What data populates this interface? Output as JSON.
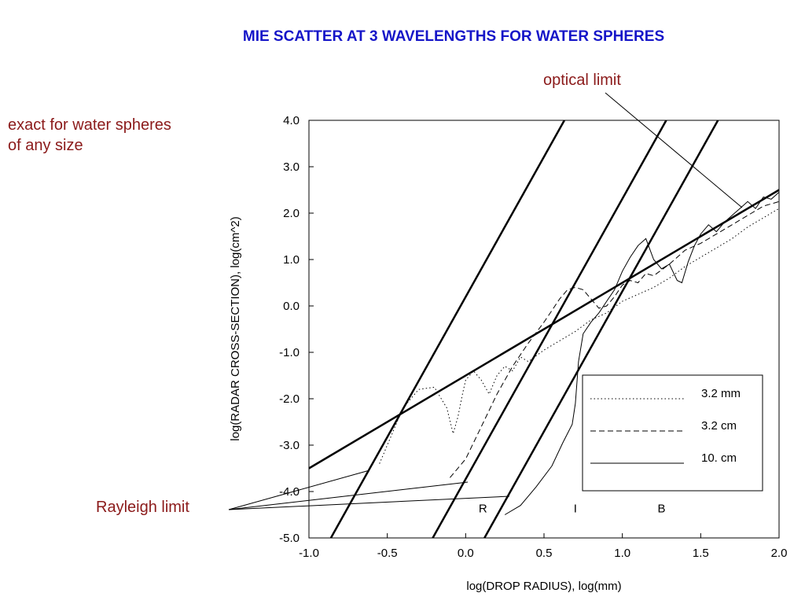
{
  "title": "MIE SCATTER AT 3 WAVELENGTHS FOR WATER SPHERES",
  "annotations": {
    "exact": [
      "exact for water spheres",
      "of any size"
    ],
    "optical": "optical limit",
    "rayleigh": "Rayleigh limit"
  },
  "colors": {
    "title": "#1515c8",
    "annotation": "#8b1a1a",
    "line": "#000000"
  },
  "chart_data": {
    "type": "line",
    "title": "MIE SCATTER AT 3 WAVELENGTHS FOR WATER SPHERES",
    "xlabel": "log(DROP RADIUS), log(mm)",
    "ylabel": "log(RADAR CROSS-SECTION), log(cm^2)",
    "xlim": [
      -1.0,
      2.0
    ],
    "ylim": [
      -5.0,
      4.0
    ],
    "xticks": [
      "-1.0",
      "-0.5",
      "0.0",
      "0.5",
      "1.0",
      "1.5",
      "2.0"
    ],
    "yticks": [
      "4.0",
      "3.0",
      "2.0",
      "1.0",
      "0.0",
      "-1.0",
      "-2.0",
      "-3.0",
      "-4.0",
      "-5.0"
    ],
    "regions": [
      "R",
      "I",
      "B"
    ],
    "region_x": [
      0.11,
      0.7,
      1.25
    ],
    "region_y": -4.45,
    "grid": false,
    "legend_position": "bottom-right",
    "limits": {
      "optical": {
        "x": [
          -1.0,
          2.0
        ],
        "y": [
          -3.5,
          2.5
        ]
      },
      "rayleigh": [
        {
          "x": [
            -0.86,
            0.63
          ],
          "y": [
            -5.0,
            4.0
          ]
        },
        {
          "x": [
            -0.21,
            1.28
          ],
          "y": [
            -5.0,
            4.0
          ]
        },
        {
          "x": [
            0.12,
            1.61
          ],
          "y": [
            -5.0,
            4.0
          ]
        }
      ]
    },
    "series": [
      {
        "name": "3.2 mm",
        "style": "dotted",
        "x": [
          -0.55,
          -0.45,
          -0.4,
          -0.3,
          -0.2,
          -0.12,
          -0.08,
          -0.05,
          -0.02,
          0.0,
          0.05,
          0.1,
          0.15,
          0.2,
          0.25,
          0.3,
          0.35,
          0.4,
          0.5,
          0.6,
          0.7,
          0.8,
          0.9,
          1.0,
          1.1,
          1.2,
          1.3,
          1.4,
          1.5,
          1.6,
          1.7,
          1.8,
          1.9,
          2.0
        ],
        "y": [
          -3.4,
          -2.6,
          -2.2,
          -1.8,
          -1.75,
          -2.2,
          -2.75,
          -2.4,
          -1.9,
          -1.6,
          -1.4,
          -1.6,
          -1.9,
          -1.5,
          -1.3,
          -1.4,
          -1.1,
          -1.2,
          -0.95,
          -0.75,
          -0.55,
          -0.3,
          -0.15,
          0.1,
          0.25,
          0.4,
          0.6,
          0.85,
          1.05,
          1.25,
          1.45,
          1.7,
          1.9,
          2.1
        ]
      },
      {
        "name": "3.2 cm",
        "style": "dashed",
        "x": [
          -0.1,
          0.0,
          0.1,
          0.2,
          0.3,
          0.4,
          0.5,
          0.55,
          0.6,
          0.65,
          0.7,
          0.75,
          0.8,
          0.85,
          0.9,
          0.95,
          1.0,
          1.05,
          1.1,
          1.15,
          1.2,
          1.3,
          1.4,
          1.5,
          1.6,
          1.7,
          1.8,
          1.9,
          2.0
        ],
        "y": [
          -3.7,
          -3.3,
          -2.6,
          -1.9,
          -1.3,
          -0.8,
          -0.35,
          -0.1,
          0.15,
          0.35,
          0.4,
          0.35,
          0.15,
          -0.05,
          0.0,
          0.2,
          0.45,
          0.55,
          0.5,
          0.7,
          0.65,
          0.9,
          1.2,
          1.35,
          1.55,
          1.75,
          1.95,
          2.15,
          2.25
        ]
      },
      {
        "name": "10. cm",
        "style": "solid",
        "x": [
          0.25,
          0.35,
          0.45,
          0.55,
          0.62,
          0.68,
          0.7,
          0.72,
          0.75,
          0.8,
          0.85,
          0.9,
          0.95,
          1.0,
          1.05,
          1.1,
          1.15,
          1.2,
          1.25,
          1.3,
          1.35,
          1.38,
          1.42,
          1.46,
          1.5,
          1.55,
          1.6,
          1.65,
          1.7,
          1.75,
          1.8,
          1.85,
          1.9,
          1.95,
          2.0
        ],
        "y": [
          -4.5,
          -4.3,
          -3.9,
          -3.45,
          -2.95,
          -2.55,
          -2.1,
          -1.2,
          -0.6,
          -0.35,
          -0.15,
          0.1,
          0.35,
          0.75,
          1.05,
          1.3,
          1.45,
          1.0,
          0.8,
          0.9,
          0.55,
          0.5,
          0.95,
          1.3,
          1.55,
          1.75,
          1.6,
          1.8,
          1.95,
          2.1,
          2.25,
          2.1,
          2.35,
          2.3,
          2.45
        ]
      }
    ]
  }
}
